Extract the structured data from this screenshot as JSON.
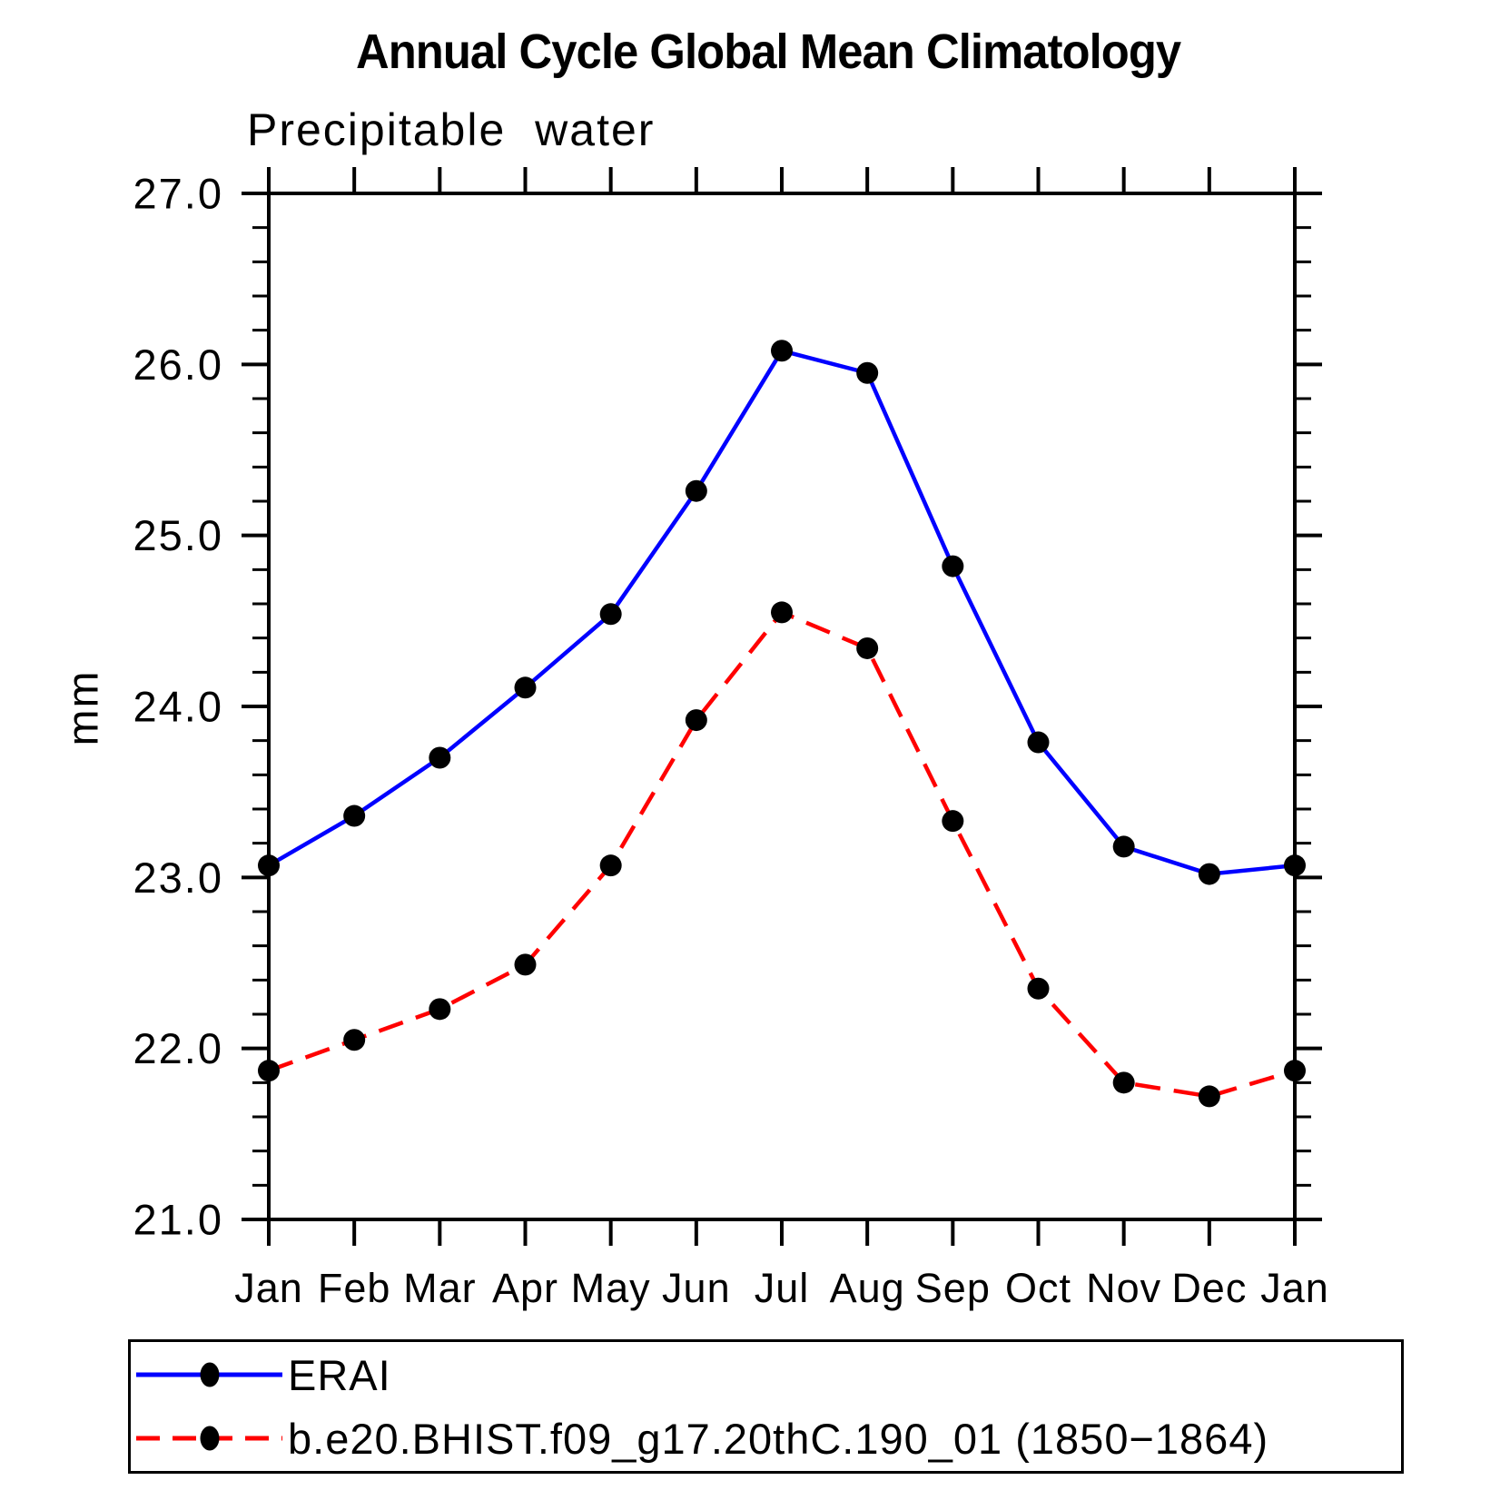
{
  "page": {
    "background": "#ffffff",
    "text_color": "#000000"
  },
  "chart_data": {
    "type": "line",
    "title": "Annual Cycle Global Mean Climatology",
    "subtitle": "Precipitable water",
    "ylabel": "mm",
    "xlabel": "",
    "categories": [
      "Jan",
      "Feb",
      "Mar",
      "Apr",
      "May",
      "Jun",
      "Jul",
      "Aug",
      "Sep",
      "Oct",
      "Nov",
      "Dec",
      "Jan"
    ],
    "ylim": [
      21.0,
      27.0
    ],
    "ytick_major_step": 1.0,
    "ytick_minor_step": 0.2,
    "ytick_labels": [
      "21.0",
      "22.0",
      "23.0",
      "24.0",
      "25.0",
      "26.0",
      "27.0"
    ],
    "grid": false,
    "legend_position": "bottom-left-box",
    "series": [
      {
        "name": "ERAI",
        "line_color": "#0000ff",
        "line_style": "solid",
        "marker": "filled-circle",
        "marker_color": "#000000",
        "values": [
          23.07,
          23.36,
          23.7,
          24.11,
          24.54,
          25.26,
          26.08,
          25.95,
          24.82,
          23.79,
          23.18,
          23.02,
          23.07
        ]
      },
      {
        "name": "b.e20.BHIST.f09_g17.20thC.190_01 (1850−1864)",
        "line_color": "#ff0000",
        "line_style": "dashed",
        "marker": "filled-circle",
        "marker_color": "#000000",
        "values": [
          21.87,
          22.05,
          22.23,
          22.49,
          23.07,
          23.92,
          24.55,
          24.34,
          23.33,
          22.35,
          21.8,
          21.72,
          21.87
        ]
      }
    ]
  }
}
